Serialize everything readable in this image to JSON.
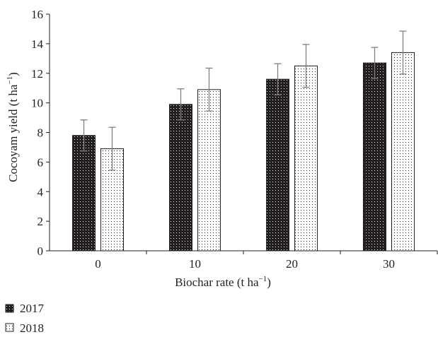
{
  "chart_data": {
    "type": "bar",
    "categories": [
      "0",
      "10",
      "20",
      "30"
    ],
    "series": [
      {
        "name": "2017",
        "values": [
          7.8,
          9.9,
          11.6,
          12.7
        ],
        "error": [
          1.05,
          1.05,
          1.05,
          1.05
        ],
        "pattern": "dark-dotted"
      },
      {
        "name": "2018",
        "values": [
          6.9,
          10.9,
          12.5,
          13.4
        ],
        "error": [
          1.45,
          1.45,
          1.45,
          1.45
        ],
        "pattern": "light-dotted"
      }
    ],
    "xlabel": "Biochar rate (t ha",
    "xlabel_sup": "−1",
    "xlabel_suffix": ")",
    "ylabel": "Cocoyam yield (t ha",
    "ylabel_sup": "−1",
    "ylabel_suffix": ")",
    "ylim": [
      0,
      16
    ],
    "yticks": [
      "0",
      "2",
      "4",
      "6",
      "8",
      "10",
      "12",
      "14",
      "16"
    ],
    "grid": false,
    "legend_position": "bottom-left",
    "colors": {
      "dark": "#231f20",
      "light": "#ffffff",
      "axis": "#231f20",
      "error": "#7f7f7f"
    }
  }
}
